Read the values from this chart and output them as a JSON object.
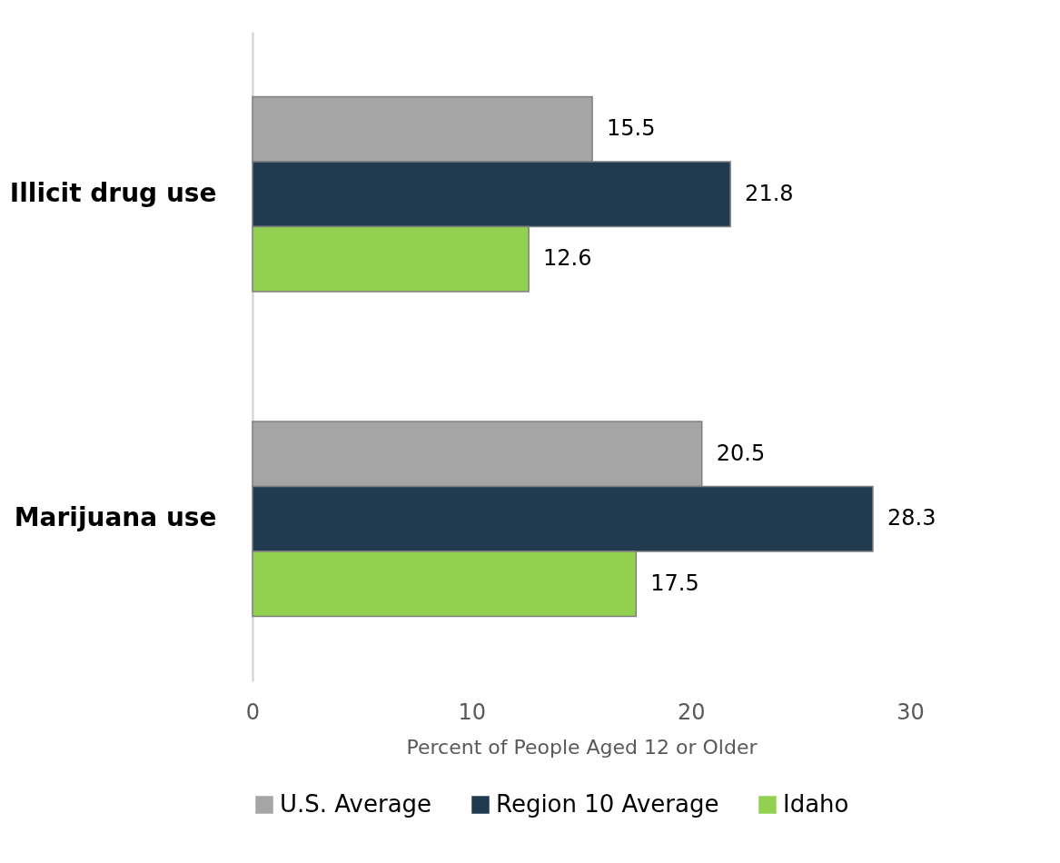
{
  "chart_data": {
    "type": "bar",
    "orientation": "horizontal",
    "xlabel": "Percent of People Aged 12 or Older",
    "categories": [
      "Illicit drug use",
      "Marijuana use"
    ],
    "series": [
      {
        "name": "U.S. Average",
        "color": "#a5a5a5",
        "values": [
          15.5,
          20.5
        ]
      },
      {
        "name": "Region 10 Average",
        "color": "#203a4f",
        "values": [
          21.8,
          28.3
        ]
      },
      {
        "name": "Idaho",
        "color": "#92d050",
        "values": [
          12.6,
          17.5
        ]
      }
    ],
    "xlim": [
      0,
      30
    ],
    "xticks": [
      0,
      10,
      20,
      30
    ],
    "grid": false,
    "legend": "bottom",
    "data_labels": true
  }
}
